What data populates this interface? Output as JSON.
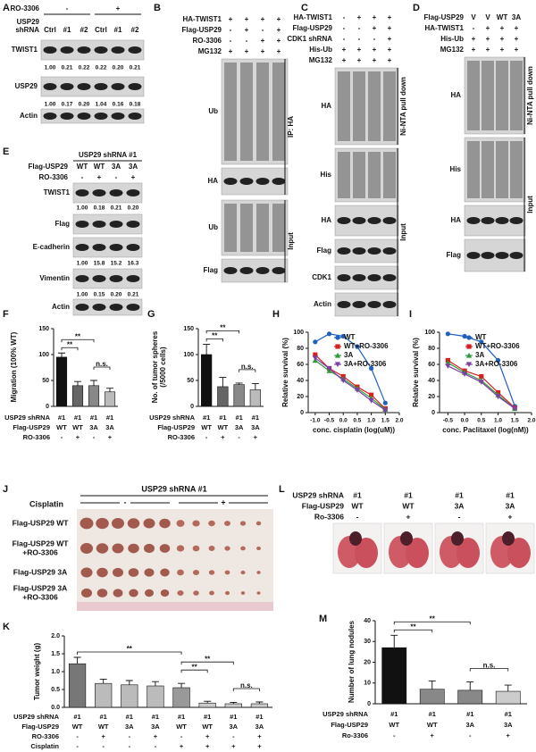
{
  "blots": [
    {
      "letter": "A",
      "conditions": [
        {
          "label": "RO-3306",
          "cells": [
            "-",
            "+"
          ]
        },
        {
          "label": [
            "USP29",
            "shRNA"
          ],
          "cells": [
            "Ctrl",
            "#1",
            "#2",
            "Ctrl",
            "#1",
            "#2"
          ]
        }
      ],
      "bands": [
        {
          "label": "TWIST1",
          "quant": [
            "1.00",
            "0.21",
            "0.22",
            "0.22",
            "0.20",
            "0.21"
          ]
        },
        {
          "label": "USP29",
          "quant": [
            "1.00",
            "0.17",
            "0.20",
            "1.04",
            "0.16",
            "0.18"
          ]
        },
        {
          "label": "Actin"
        }
      ]
    },
    {
      "letter": "B",
      "conditions": [
        {
          "label": "HA-TWIST1",
          "cells": [
            "+",
            "+",
            "+",
            "+"
          ]
        },
        {
          "label": "Flag-USP29",
          "cells": [
            "-",
            "+",
            "-",
            "+"
          ]
        },
        {
          "label": "RO-3306",
          "cells": [
            "-",
            "-",
            "+",
            "+"
          ]
        },
        {
          "label": "MG132",
          "cells": [
            "+",
            "+",
            "+",
            "+"
          ]
        }
      ],
      "bands": [
        {
          "label": "Ub"
        },
        {
          "label": "HA"
        },
        {
          "label": "Ub"
        },
        {
          "label": "Flag"
        }
      ],
      "sections": [
        {
          "label": "IP: HA"
        },
        {
          "label": "Input"
        }
      ]
    },
    {
      "letter": "C",
      "conditions": [
        {
          "label": "HA-TWIST1",
          "cells": [
            "-",
            "+",
            "+",
            "+"
          ]
        },
        {
          "label": "Flag-USP29",
          "cells": [
            "-",
            "-",
            "+",
            "+"
          ]
        },
        {
          "label": "CDK1 shRNA",
          "cells": [
            "-",
            "-",
            "-",
            "+"
          ]
        },
        {
          "label": "His-Ub",
          "cells": [
            "+",
            "+",
            "+",
            "+"
          ]
        },
        {
          "label": "MG132",
          "cells": [
            "+",
            "+",
            "+",
            "+"
          ]
        }
      ],
      "bands": [
        {
          "label": "HA"
        },
        {
          "label": "His"
        },
        {
          "label": "HA"
        },
        {
          "label": "Flag"
        },
        {
          "label": "CDK1"
        },
        {
          "label": "Actin"
        }
      ],
      "sections": [
        {
          "label": "Ni-NTA pull down"
        },
        {
          "label": "Input"
        }
      ]
    },
    {
      "letter": "D",
      "conditions": [
        {
          "label": "Flag-USP29",
          "cells": [
            "V",
            "V",
            "WT",
            "3A"
          ]
        },
        {
          "label": "HA-TWIST1",
          "cells": [
            "-",
            "+",
            "+",
            "+"
          ]
        },
        {
          "label": "His-Ub",
          "cells": [
            "+",
            "+",
            "+",
            "+"
          ]
        },
        {
          "label": "MG132",
          "cells": [
            "+",
            "+",
            "+",
            "+"
          ]
        }
      ],
      "bands": [
        {
          "label": "HA"
        },
        {
          "label": "His"
        },
        {
          "label": "HA"
        },
        {
          "label": "Flag"
        }
      ],
      "sections": [
        {
          "label": "Ni-NTA pull down"
        },
        {
          "label": "Input"
        }
      ]
    },
    {
      "letter": "E",
      "header": "USP29 shRNA #1",
      "conditions": [
        {
          "label": "Flag-USP29",
          "cells": [
            "WT",
            "WT",
            "3A",
            "3A"
          ]
        },
        {
          "label": "RO-3306",
          "cells": [
            "-",
            "+",
            "-",
            "+"
          ]
        }
      ],
      "bands": [
        {
          "label": "TWIST1",
          "quant": [
            "1.00",
            "0.18",
            "0.21",
            "0.20"
          ]
        },
        {
          "label": "Flag"
        },
        {
          "label": "E-cadherin",
          "quant": [
            "1.00",
            "15.8",
            "15.2",
            "16.3"
          ]
        },
        {
          "label": "Vimentin",
          "quant": [
            "1.00",
            "0.15",
            "0.20",
            "0.21"
          ]
        },
        {
          "label": "Actin"
        }
      ]
    }
  ],
  "chart_data": [
    {
      "letter": "F",
      "type": "bar",
      "ylabel": "Migration (100% WT)",
      "ylim": [
        0,
        150
      ],
      "yticks": [
        0,
        50,
        100,
        150
      ],
      "values": [
        95,
        40,
        40,
        28
      ],
      "errors": [
        8,
        8,
        10,
        7
      ],
      "colors": [
        "#111111",
        "#666666",
        "#888888",
        "#bbbbbb"
      ],
      "category_rows": [
        {
          "label": "USP29 shRNA",
          "cells": [
            "#1",
            "#1",
            "#1",
            "#1"
          ]
        },
        {
          "label": "Flag-USP29",
          "cells": [
            "WT",
            "WT",
            "3A",
            "3A"
          ]
        },
        {
          "label": "RO-3306",
          "cells": [
            "-",
            "+",
            "-",
            "+"
          ]
        }
      ],
      "annotations": [
        {
          "text": "**",
          "between": [
            0,
            1
          ]
        },
        {
          "text": "**",
          "between": [
            0,
            2
          ]
        },
        {
          "text": "n.s.",
          "between": [
            2,
            3
          ]
        }
      ]
    },
    {
      "letter": "G",
      "type": "bar",
      "ylabel": [
        "No. of tumor spheres",
        "(/5000 cells)"
      ],
      "ylim": [
        0,
        150
      ],
      "yticks": [
        0,
        50,
        100,
        150
      ],
      "values": [
        100,
        38,
        42,
        32
      ],
      "errors": [
        20,
        18,
        3,
        12
      ],
      "colors": [
        "#111111",
        "#666666",
        "#888888",
        "#bbbbbb"
      ],
      "category_rows": [
        {
          "label": "USP29 shRNA",
          "cells": [
            "#1",
            "#1",
            "#1",
            "#1"
          ]
        },
        {
          "label": "Flag-USP29",
          "cells": [
            "WT",
            "WT",
            "3A",
            "3A"
          ]
        },
        {
          "label": "RO-3306",
          "cells": [
            "-",
            "+",
            "-",
            "+"
          ]
        }
      ],
      "annotations": [
        {
          "text": "**",
          "between": [
            0,
            1
          ]
        },
        {
          "text": "**",
          "between": [
            0,
            2
          ]
        },
        {
          "text": "n.s.",
          "between": [
            2,
            3
          ]
        }
      ]
    },
    {
      "letter": "H",
      "type": "line",
      "ylabel": "Relative survival (%)",
      "xlabel": "conc. cisplatin (log(uM))",
      "xlim": [
        -1.25,
        2.0
      ],
      "xticks": [
        {
          "value": -1,
          "label": "-1.0"
        },
        -0.5,
        {
          "value": 0,
          "label": "0.0"
        },
        0.5,
        {
          "value": 1,
          "label": "1.0"
        },
        1.5,
        {
          "value": 2,
          "label": "2.0"
        }
      ],
      "ylim": [
        0,
        100
      ],
      "yticks": [
        0,
        20,
        40,
        60,
        80,
        100
      ],
      "legend": "top-right",
      "x": [
        -1,
        -0.5,
        0,
        0.5,
        1,
        1.5
      ],
      "series": [
        {
          "name": "WT",
          "color": "#1f5fbf",
          "marker": "circle",
          "values": [
            88,
            98,
            95,
            82,
            55,
            12
          ]
        },
        {
          "name": "WT+RO-3306",
          "color": "#d62020",
          "marker": "square",
          "values": [
            72,
            55,
            45,
            32,
            22,
            5
          ]
        },
        {
          "name": "3A",
          "color": "#2e9b3a",
          "marker": "triangle-up",
          "values": [
            65,
            52,
            42,
            30,
            18,
            4
          ]
        },
        {
          "name": "3A+RO-3306",
          "color": "#7b3fa8",
          "marker": "triangle-down",
          "values": [
            68,
            55,
            40,
            28,
            15,
            3
          ]
        }
      ]
    },
    {
      "letter": "I",
      "type": "line",
      "ylabel": "Relative survival (%)",
      "xlabel": "conc. Paclitaxel (log(nM))",
      "xlim": [
        -0.75,
        2.0
      ],
      "xticks": [
        -0.5,
        {
          "value": 0,
          "label": "0.0"
        },
        0.5,
        {
          "value": 1,
          "label": "1.0"
        },
        1.5,
        {
          "value": 2,
          "label": "2.0"
        }
      ],
      "ylim": [
        0,
        100
      ],
      "yticks": [
        0,
        20,
        40,
        60,
        80,
        100
      ],
      "legend": "top-right",
      "x": [
        -0.5,
        0,
        0.5,
        1,
        1.5
      ],
      "series": [
        {
          "name": "WT",
          "color": "#1f5fbf",
          "marker": "circle",
          "values": [
            98,
            95,
            88,
            65,
            8
          ]
        },
        {
          "name": "WT+RO-3306",
          "color": "#d62020",
          "marker": "square",
          "values": [
            65,
            52,
            45,
            25,
            6
          ]
        },
        {
          "name": "3A",
          "color": "#2e9b3a",
          "marker": "triangle-up",
          "values": [
            62,
            50,
            40,
            22,
            5
          ]
        },
        {
          "name": "3A+RO-3306",
          "color": "#7b3fa8",
          "marker": "triangle-down",
          "values": [
            58,
            48,
            38,
            20,
            5
          ]
        }
      ]
    },
    {
      "letter": "K",
      "type": "bar",
      "ylabel": "Tumor weight (g)",
      "ylim": [
        0,
        2
      ],
      "yticks": [
        {
          "value": 0,
          "label": "0.0"
        },
        0.5,
        {
          "value": 1,
          "label": "1.0"
        },
        1.5,
        {
          "value": 2,
          "label": "2.0"
        }
      ],
      "values": [
        1.22,
        0.67,
        0.63,
        0.6,
        0.55,
        0.12,
        0.1,
        0.1
      ],
      "errors": [
        0.18,
        0.12,
        0.12,
        0.12,
        0.12,
        0.05,
        0.04,
        0.05
      ],
      "colors": [
        "#777777",
        "#bbbbbb",
        "#bbbbbb",
        "#bbbbbb",
        "#999999",
        "#cccccc",
        "#cccccc",
        "#cccccc"
      ],
      "category_rows": [
        {
          "label": "USP29 shRNA",
          "cells": [
            "#1",
            "#1",
            "#1",
            "#1",
            "#1",
            "#1",
            "#1",
            "#1"
          ]
        },
        {
          "label": "Flag-USP29",
          "cells": [
            "WT",
            "WT",
            "3A",
            "3A",
            "WT",
            "WT",
            "3A",
            "3A"
          ]
        },
        {
          "label": "RO-3306",
          "cells": [
            "-",
            "+",
            "-",
            "+",
            "-",
            "+",
            "-",
            "+"
          ]
        },
        {
          "label": "Cisplatin",
          "cells": [
            "-",
            "-",
            "-",
            "-",
            "+",
            "+",
            "+",
            "+"
          ]
        }
      ],
      "annotations": [
        {
          "text": "**",
          "between": [
            0,
            4
          ]
        },
        {
          "text": "**",
          "between": [
            4,
            5
          ]
        },
        {
          "text": "**",
          "between": [
            4,
            6
          ]
        },
        {
          "text": "n.s.",
          "between": [
            6,
            7
          ]
        }
      ]
    },
    {
      "letter": "M",
      "type": "bar",
      "ylabel": "Number of lung nodules",
      "ylim": [
        0,
        40
      ],
      "yticks": [
        0,
        10,
        20,
        30,
        40
      ],
      "values": [
        27,
        7,
        6.5,
        6
      ],
      "errors": [
        6,
        4,
        4,
        3
      ],
      "colors": [
        "#111111",
        "#888888",
        "#888888",
        "#cccccc"
      ],
      "category_rows": [
        {
          "label": "USP29 shRNA",
          "cells": [
            "#1",
            "#1",
            "#1",
            "#1"
          ]
        },
        {
          "label": "Flag-USP29",
          "cells": [
            "WT",
            "WT",
            "3A",
            "3A"
          ]
        },
        {
          "label": "Ro-3306",
          "cells": [
            "-",
            "+",
            "-",
            "+"
          ]
        }
      ],
      "annotations": [
        {
          "text": "**",
          "between": [
            0,
            1
          ]
        },
        {
          "text": "**",
          "between": [
            0,
            2
          ]
        },
        {
          "text": "n.s.",
          "between": [
            2,
            3
          ]
        }
      ]
    }
  ],
  "tumor_panel": {
    "letter": "J",
    "header": "USP29 shRNA #1",
    "treatment": "Cisplatin",
    "treatment_cells": [
      "-",
      "+"
    ],
    "rows": [
      [
        "Flag-USP29 WT"
      ],
      [
        "Flag-USP29 WT",
        "+RO-3306"
      ],
      [
        "Flag-USP29 3A"
      ],
      [
        "Flag-USP29 3A",
        "+RO-3306"
      ]
    ]
  },
  "lung_panel": {
    "letter": "L",
    "conditions": [
      {
        "label": "USP29 shRNA",
        "cells": [
          "#1",
          "#1",
          "#1",
          "#1"
        ]
      },
      {
        "label": "Flag-USP29",
        "cells": [
          "WT",
          "WT",
          "3A",
          "3A"
        ]
      },
      {
        "label": "Ro-3306",
        "cells": [
          "-",
          "+",
          "-",
          "+"
        ]
      }
    ]
  }
}
